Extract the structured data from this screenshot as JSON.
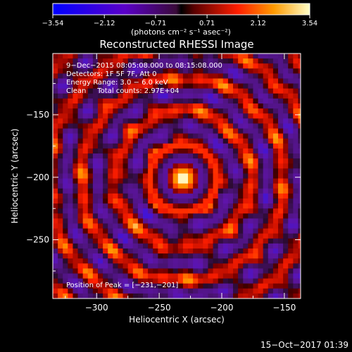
{
  "chart_data": {
    "type": "heatmap",
    "title": "Reconstructed RHESSI Image",
    "xlabel": "Heliocentric X (arcsec)",
    "ylabel": "Heliocentric Y (arcsec)",
    "xlim": [
      -335,
      -137
    ],
    "ylim": [
      -297,
      -101
    ],
    "x_ticks": [
      -300,
      -250,
      -200,
      -150
    ],
    "y_ticks": [
      -150,
      -200,
      -250
    ],
    "x_tick_labels": [
      "−300",
      "−250",
      "−200",
      "−150"
    ],
    "y_tick_labels": [
      "−150",
      "−200",
      "−250"
    ],
    "colorbar": {
      "range": [
        -3.54,
        3.54
      ],
      "ticks": [
        -3.54,
        -2.12,
        -0.71,
        0.71,
        2.12,
        3.54
      ],
      "tick_labels": [
        "−3.54",
        "−2.12",
        "−0.71",
        "0.71",
        "2.12",
        "3.54"
      ],
      "unit_label": "(photons cm⁻² s⁻¹ asec⁻²)"
    },
    "peak": {
      "x": -231,
      "y": -201,
      "value": 3.54
    },
    "annotations": [
      "9−Dec−2015 08:05:08.000 to 08:15:08.000",
      "Detectors: 1F 5F 7F, Att 0",
      "Energy Range: 3.0 − 6.0 keV",
      "Clean     Total counts: 2.97E+04",
      "Position of Peak = [−231,−201]"
    ]
  },
  "timestamp": "15−Oct−2017 01:39"
}
